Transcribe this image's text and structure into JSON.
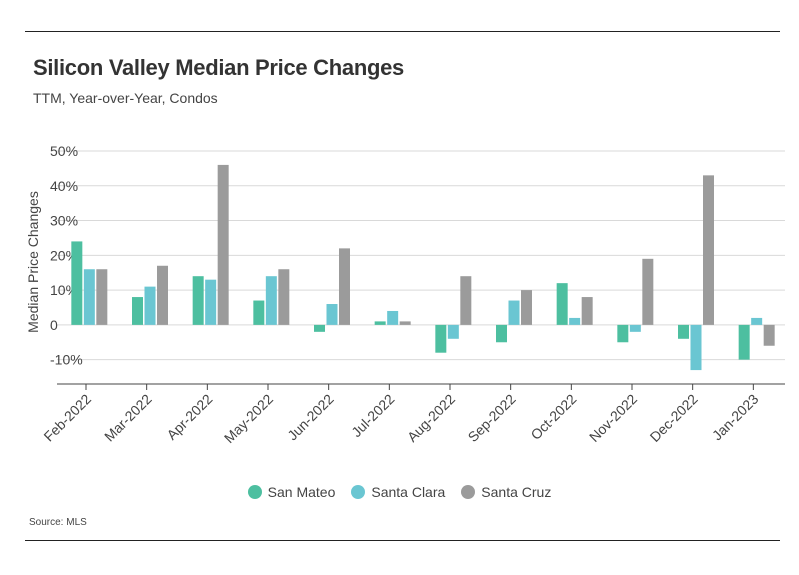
{
  "title": "Silicon Valley Median Price Changes",
  "subtitle": "TTM, Year-over-Year, Condos",
  "source": "Source:  MLS",
  "chart_data": {
    "type": "bar",
    "title": "Silicon Valley Median Price Changes",
    "subtitle": "TTM, Year-over-Year, Condos",
    "ylabel": "Median Price Changes",
    "xlabel": "",
    "ylim": [
      -17,
      50
    ],
    "yticks": [
      50,
      40,
      30,
      20,
      10,
      0,
      -10
    ],
    "ytick_labels": [
      "50%",
      "40%",
      "30%",
      "20%",
      "10%",
      "0",
      "-10%"
    ],
    "grid": true,
    "legend_position": "bottom",
    "categories": [
      "Feb-2022",
      "Mar-2022",
      "Apr-2022",
      "May-2022",
      "Jun-2022",
      "Jul-2022",
      "Aug-2022",
      "Sep-2022",
      "Oct-2022",
      "Nov-2022",
      "Dec-2022",
      "Jan-2023"
    ],
    "series": [
      {
        "name": "San Mateo",
        "color": "#4dbfa0",
        "values": [
          24,
          8,
          14,
          7,
          -2,
          1,
          -8,
          -5,
          12,
          -5,
          -4,
          -10
        ]
      },
      {
        "name": "Santa Clara",
        "color": "#6ac6d2",
        "values": [
          16,
          11,
          13,
          14,
          6,
          4,
          -4,
          7,
          2,
          -2,
          -13,
          2
        ]
      },
      {
        "name": "Santa Cruz",
        "color": "#9b9b9b",
        "values": [
          16,
          17,
          46,
          16,
          22,
          1,
          14,
          10,
          8,
          19,
          43,
          -6
        ]
      }
    ]
  }
}
